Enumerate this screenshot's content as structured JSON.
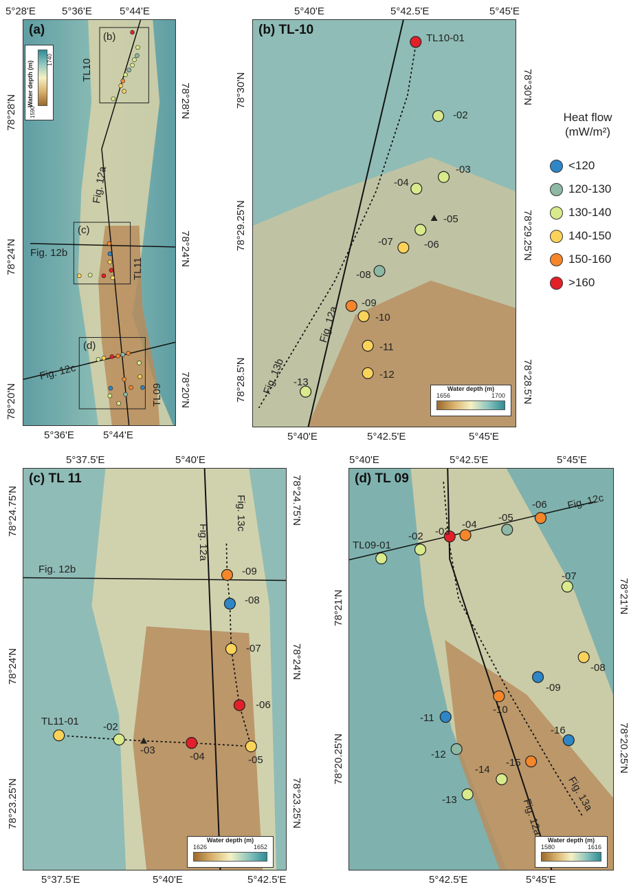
{
  "heat_flow_legend": {
    "title_line1": "Heat flow",
    "title_line2": "(mW/m²)",
    "classes": [
      {
        "label": "<120",
        "color": "#2f86c6"
      },
      {
        "label": "120-130",
        "color": "#8db8a4"
      },
      {
        "label": "130-140",
        "color": "#d8ea8c"
      },
      {
        "label": "140-150",
        "color": "#fbd35a"
      },
      {
        "label": "150-160",
        "color": "#f5862a"
      },
      {
        "label": ">160",
        "color": "#e3202a"
      }
    ]
  },
  "panel_a": {
    "title": "(a)",
    "depth_title": "Water depth (m)",
    "depth_max": "1740",
    "depth_min": "1590",
    "top_ticks": [
      "5°28'E",
      "5°36'E",
      "5°44'E"
    ],
    "bottom_ticks": [
      "5°36'E",
      "5°44'E"
    ],
    "left_ticks": [
      "78°28'N",
      "78°24'N",
      "78°20'N"
    ],
    "right_ticks": [
      "78°28'N",
      "78°24'N",
      "78°20'N"
    ],
    "box_labels": [
      "(b)",
      "(c)",
      "(d)"
    ],
    "line_labels": [
      "TL10",
      "Fig. 12a",
      "Fig. 12b",
      "TL11",
      "Fig. 12c",
      "TL09"
    ]
  },
  "panel_b": {
    "title": "(b) TL-10",
    "top_ticks": [
      "5°40'E",
      "5°42.5'E",
      "5°45'E"
    ],
    "bottom_ticks": [
      "5°40'E",
      "5°42.5'E",
      "5°45'E"
    ],
    "left_ticks": [
      "78°30'N",
      "78°29.25'N",
      "78°28.5'N"
    ],
    "right_ticks": [
      "78°30'N",
      "78°29.25'N",
      "78°28.5'N"
    ],
    "line_labels": [
      "Fig. 12a",
      "Fig. 13b"
    ],
    "depth_title": "Water depth (m)",
    "depth_min": "1656",
    "depth_max": "1700",
    "stations": [
      {
        "label": "TL10-01",
        "hf": ">160"
      },
      {
        "label": "-02",
        "hf": "130-140"
      },
      {
        "label": "-03",
        "hf": "130-140"
      },
      {
        "label": "-04",
        "hf": "130-140"
      },
      {
        "label": "-05",
        "hf": "none"
      },
      {
        "label": "-06",
        "hf": "130-140"
      },
      {
        "label": "-07",
        "hf": "140-150"
      },
      {
        "label": "-08",
        "hf": "120-130"
      },
      {
        "label": "-09",
        "hf": "150-160"
      },
      {
        "label": "-10",
        "hf": "140-150"
      },
      {
        "label": "-11",
        "hf": "140-150"
      },
      {
        "label": "-12",
        "hf": "140-150"
      },
      {
        "label": "-13",
        "hf": "130-140"
      }
    ]
  },
  "panel_c": {
    "title": "(c) TL 11",
    "top_ticks": [
      "5°37.5'E",
      "5°40'E"
    ],
    "bottom_ticks": [
      "5°37.5'E",
      "5°40'E",
      "5°42.5'E"
    ],
    "left_ticks": [
      "78°24.75'N",
      "78°24'N",
      "78°23.25'N"
    ],
    "right_ticks": [
      "78°24.75'N",
      "78°24'N",
      "78°23.25'N"
    ],
    "line_labels": [
      "Fig. 12a",
      "Fig. 13c",
      "Fig. 12b"
    ],
    "depth_title": "Water depth (m)",
    "depth_min": "1626",
    "depth_max": "1652",
    "stations": [
      {
        "label": "TL11-01",
        "hf": "140-150"
      },
      {
        "label": "-02",
        "hf": "130-140"
      },
      {
        "label": "-03",
        "hf": "none"
      },
      {
        "label": "-04",
        "hf": ">160"
      },
      {
        "label": "-05",
        "hf": "140-150"
      },
      {
        "label": "-06",
        "hf": ">160"
      },
      {
        "label": "-07",
        "hf": "140-150"
      },
      {
        "label": "-08",
        "hf": "<120"
      },
      {
        "label": "-09",
        "hf": "150-160"
      }
    ]
  },
  "panel_d": {
    "title": "(d) TL 09",
    "top_ticks": [
      "5°40'E",
      "5°42.5'E",
      "5°45'E"
    ],
    "bottom_ticks": [
      "5°42.5'E",
      "5°45'E"
    ],
    "left_ticks": [
      "78°21'N",
      "78°20.25'N"
    ],
    "right_ticks": [
      "78°21'N",
      "78°20.25'N"
    ],
    "line_labels": [
      "Fig. 12c",
      "Fig. 12a",
      "Fig. 13a"
    ],
    "depth_title": "Water depth (m)",
    "depth_min": "1580",
    "depth_max": "1616",
    "stations": [
      {
        "label": "TL09-01",
        "hf": "130-140"
      },
      {
        "label": "-02",
        "hf": "130-140"
      },
      {
        "label": "-03",
        "hf": ">160"
      },
      {
        "label": "-04",
        "hf": "150-160"
      },
      {
        "label": "-05",
        "hf": "120-130"
      },
      {
        "label": "-06",
        "hf": "150-160"
      },
      {
        "label": "-07",
        "hf": "130-140"
      },
      {
        "label": "-08",
        "hf": "140-150"
      },
      {
        "label": "-09",
        "hf": "<120"
      },
      {
        "label": "-10",
        "hf": "150-160"
      },
      {
        "label": "-11",
        "hf": "<120"
      },
      {
        "label": "-12",
        "hf": "120-130"
      },
      {
        "label": "-13",
        "hf": "130-140"
      },
      {
        "label": "-14",
        "hf": "130-140"
      },
      {
        "label": "-15",
        "hf": "150-160"
      },
      {
        "label": "-16",
        "hf": "<120"
      }
    ]
  }
}
